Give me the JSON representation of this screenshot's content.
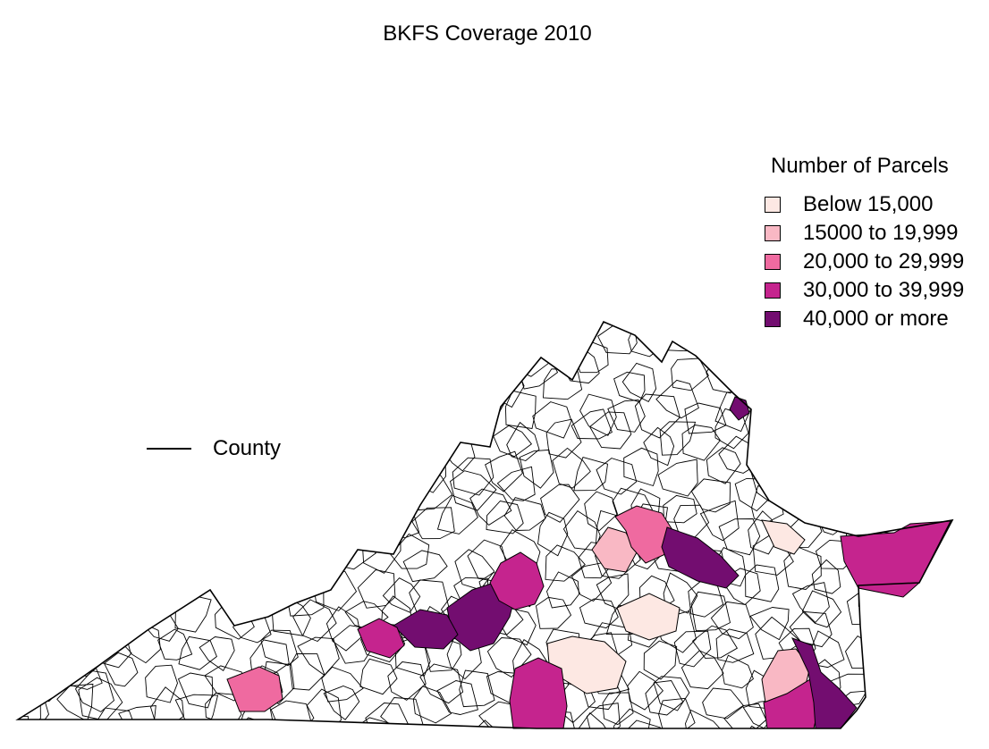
{
  "title": "BKFS Coverage 2010",
  "legend": {
    "title": "Number of Parcels",
    "items": [
      {
        "label": "Below 15,000",
        "color": "#fde8e3"
      },
      {
        "label": "15000 to 19,999",
        "color": "#f9b8c4"
      },
      {
        "label": "20,000 to 29,999",
        "color": "#ef6aa0"
      },
      {
        "label": "30,000 to 39,999",
        "color": "#c5248e"
      },
      {
        "label": "40,000 or more",
        "color": "#730d70"
      }
    ]
  },
  "county_key": {
    "label": "County"
  },
  "map_data": {
    "region": "Virginia",
    "unit": "Number of Parcels",
    "shaded_areas": [
      {
        "area": "northern-virginia-east",
        "class": 4
      },
      {
        "area": "central-piedmont-west",
        "class": 1
      },
      {
        "area": "central-piedmont-north",
        "class": 2
      },
      {
        "area": "central-piedmont-east",
        "class": 4
      },
      {
        "area": "south-central-1",
        "class": 0
      },
      {
        "area": "south-central-2",
        "class": 0
      },
      {
        "area": "northern-neck",
        "class": 0
      },
      {
        "area": "eastern-shore",
        "class": 3
      },
      {
        "area": "tidewater-1",
        "class": 1
      },
      {
        "area": "tidewater-2",
        "class": 3
      },
      {
        "area": "tidewater-3",
        "class": 4
      },
      {
        "area": "roanoke",
        "class": 4
      },
      {
        "area": "shenandoah-southwest",
        "class": 3
      },
      {
        "area": "blacksburg",
        "class": 4
      },
      {
        "area": "wytheville",
        "class": 3
      },
      {
        "area": "southside-west",
        "class": 3
      },
      {
        "area": "abingdon",
        "class": 2
      }
    ]
  }
}
